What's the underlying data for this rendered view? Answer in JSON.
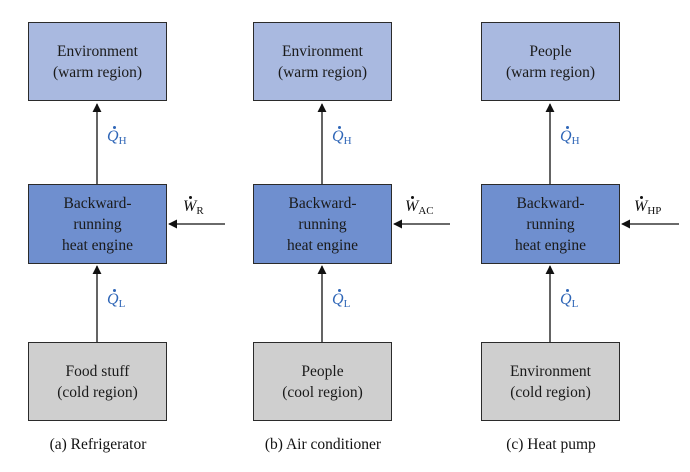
{
  "columns": [
    {
      "top": "Environment\n(warm region)",
      "engine": "Backward-\nrunning\nheat engine",
      "bottom": "Food stuff\n(cold region)",
      "q_top": {
        "sym": "Q",
        "sub": "H"
      },
      "q_bottom": {
        "sym": "Q",
        "sub": "L"
      },
      "work": {
        "sym": "W",
        "sub": "R"
      },
      "caption": "(a) Refrigerator"
    },
    {
      "top": "Environment\n(warm region)",
      "engine": "Backward-\nrunning\nheat engine",
      "bottom": "People\n(cool region)",
      "q_top": {
        "sym": "Q",
        "sub": "H"
      },
      "q_bottom": {
        "sym": "Q",
        "sub": "L"
      },
      "work": {
        "sym": "W",
        "sub": "AC"
      },
      "caption": "(b) Air conditioner"
    },
    {
      "top": "People\n(warm region)",
      "engine": "Backward-\nrunning\nheat engine",
      "bottom": "Environment\n(cold region)",
      "q_top": {
        "sym": "Q",
        "sub": "H"
      },
      "q_bottom": {
        "sym": "Q",
        "sub": "L"
      },
      "work": {
        "sym": "W",
        "sub": "HP"
      },
      "caption": "(c) Heat pump"
    }
  ],
  "colors": {
    "warm_box": "#a9b9e0",
    "engine_box": "#6f8fcf",
    "cold_box": "#cfcfcf",
    "heat_label": "#2f66b7",
    "arrow": "#111111"
  }
}
